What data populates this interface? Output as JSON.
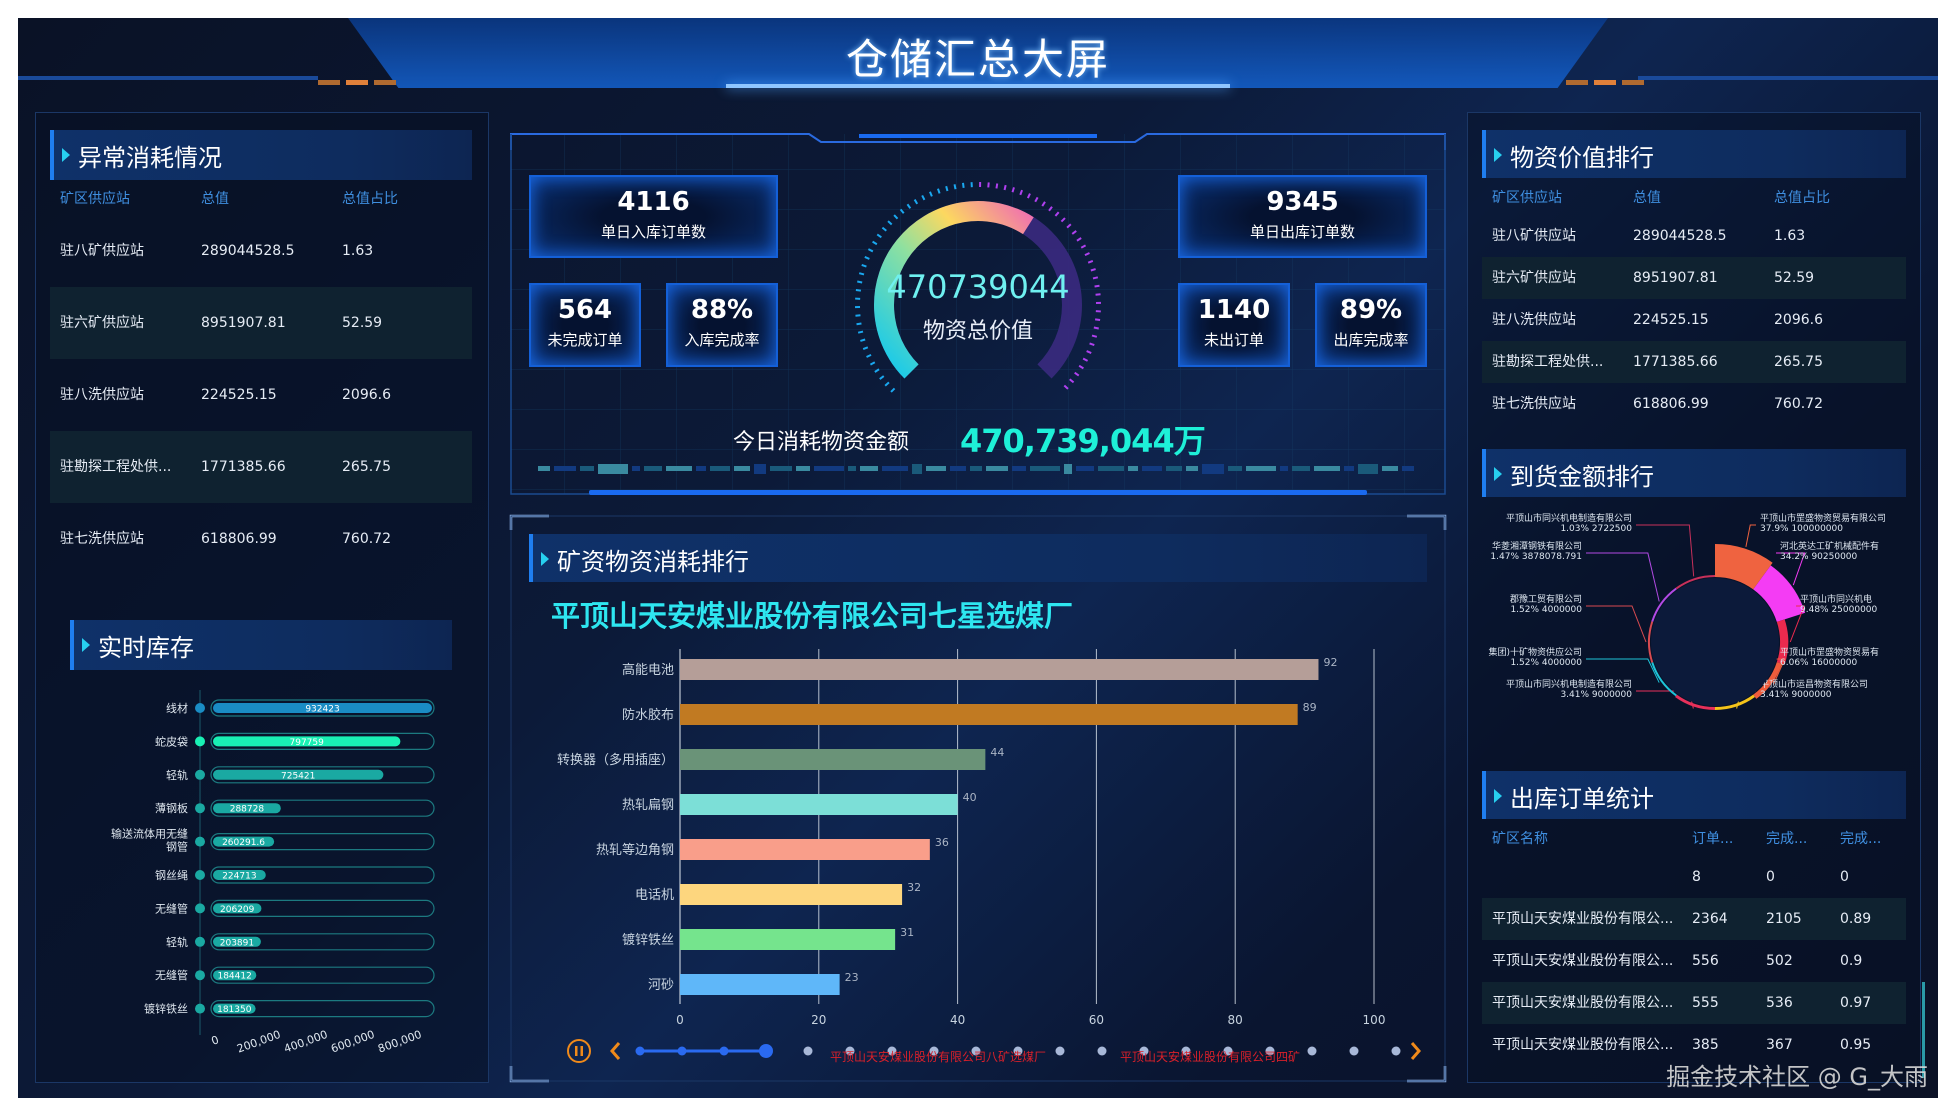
{
  "header": {
    "title": "仓储汇总大屏"
  },
  "abnormal": {
    "title": "异常消耗情况",
    "columns": [
      "矿区供应站",
      "总值",
      "总值占比"
    ],
    "rows": [
      [
        "驻八矿供应站",
        "289044528.5",
        "1.63"
      ],
      [
        "驻六矿供应站",
        "8951907.81",
        "52.59"
      ],
      [
        "驻八洗供应站",
        "224525.15",
        "2096.6"
      ],
      [
        "驻勘探工程处供...",
        "1771385.66",
        "265.75"
      ],
      [
        "驻七洗供应站",
        "618806.99",
        "760.72"
      ]
    ]
  },
  "inventory": {
    "title": "实时库存",
    "chart_data": {
      "type": "bar",
      "orientation": "horizontal",
      "categories": [
        "线材",
        "蛇皮袋",
        "轻轨",
        "薄钢板",
        "输送流体用无缝钢管",
        "钢丝绳",
        "无缝管",
        "轻轨",
        "无缝管",
        "镀锌铁丝"
      ],
      "values": [
        932423,
        797759,
        725421,
        288728,
        260291.6,
        224713,
        206209,
        203891,
        184412,
        181350
      ],
      "value_labels": [
        "932423",
        "797759",
        "725421",
        "288728",
        "260291.6",
        "224713",
        "206209",
        "203891",
        "184412",
        "181350"
      ],
      "xticks": [
        "0",
        "200,000",
        "400,000",
        "600,000",
        "800,000"
      ],
      "xlim": [
        0,
        932423
      ],
      "colors": {
        "first": "#1a8cc4",
        "second": "#19f0b4",
        "rest": "#1aa9a2"
      }
    }
  },
  "kpi": {
    "inbound_orders": {
      "value": "4116",
      "label": "单日入库订单数"
    },
    "unfinished_orders": {
      "value": "564",
      "label": "未完成订单"
    },
    "inbound_rate": {
      "value": "88%",
      "label": "入库完成率"
    },
    "outbound_orders": {
      "value": "9345",
      "label": "单日出库订单数"
    },
    "unshipped_orders": {
      "value": "1140",
      "label": "未出订单"
    },
    "outbound_rate": {
      "value": "89%",
      "label": "出库完成率"
    },
    "gauge": {
      "value": "470739044",
      "label": "物资总价值",
      "fill": 0.62
    },
    "today_label": "今日消耗物资金额",
    "today_value": "470,739,044万"
  },
  "consumption": {
    "title": "矿资物资消耗排行",
    "chart_data": {
      "type": "bar",
      "orientation": "horizontal",
      "title": "平顶山天安煤业股份有限公司七星选煤厂",
      "categories": [
        "高能电池",
        "防水胶布",
        "转换器（多用插座）",
        "热轧扁钢",
        "热轧等边角钢",
        "电话机",
        "镀锌铁丝",
        "河砂"
      ],
      "values": [
        92,
        89,
        44,
        40,
        36,
        32,
        31,
        23
      ],
      "colors": [
        "#b59e98",
        "#c17a22",
        "#6a9378",
        "#7cdfd7",
        "#f99e8a",
        "#fdd67e",
        "#75e48d",
        "#5fb7f9"
      ],
      "xlim": [
        0,
        100
      ],
      "xticks": [
        "0",
        "20",
        "40",
        "60",
        "80",
        "100"
      ],
      "grid": true
    },
    "timeline": {
      "count": 19,
      "current": 4,
      "labels": [
        "平顶山天安煤业股份有限公司八矿选煤厂",
        "平顶山天安煤业股份有限公司四矿"
      ]
    }
  },
  "value_rank": {
    "title": "物资价值排行",
    "columns": [
      "矿区供应站",
      "总值",
      "总值占比"
    ],
    "rows": [
      [
        "驻八矿供应站",
        "289044528.5",
        "1.63"
      ],
      [
        "驻六矿供应站",
        "8951907.81",
        "52.59"
      ],
      [
        "驻八洗供应站",
        "224525.15",
        "2096.6"
      ],
      [
        "驻勘探工程处供...",
        "1771385.66",
        "265.75"
      ],
      [
        "驻七洗供应站",
        "618806.99",
        "760.72"
      ]
    ]
  },
  "arrival_rank": {
    "title": "到货金额排行",
    "chart_data": {
      "type": "pie",
      "rose": true,
      "slices": [
        {
          "name": "平顶山市罡盛物资贸易有限公司",
          "pct": "37.9%",
          "value": "100000000",
          "color": "#ef6340"
        },
        {
          "name": "河北英达工矿机械配件有",
          "pct": "34.2%",
          "value": "90250000",
          "color": "#f43cf4"
        },
        {
          "name": "平顶山市同兴机电",
          "pct": "9.48%",
          "value": "25000000",
          "color": "#ea2a4e"
        },
        {
          "name": "平顶山市罡盛物资贸易有",
          "pct": "6.06%",
          "value": "16000000",
          "color": "#ee5c3c"
        },
        {
          "name": "平顶山市运昌物资有限公司",
          "pct": "3.41%",
          "value": "9000000",
          "color": "#f5c41a"
        },
        {
          "name": "平顶山市同兴机电制造有限公司",
          "pct": "3.41%",
          "value": "9000000",
          "color": "#e8305a"
        },
        {
          "name": "集团)十矿物资供应公司",
          "pct": "1.52%",
          "value": "4000000",
          "color": "#1ec4d8"
        },
        {
          "name": "郡豫工贸有限公司",
          "pct": "1.52%",
          "value": "4000000",
          "color": "#d84a50"
        },
        {
          "name": "华菱湘潭钢铁有限公司",
          "pct": "1.47%",
          "value": "3878078.791",
          "color": "#b24ae4"
        },
        {
          "name": "平顶山市同兴机电制造有限公司",
          "pct": "1.03%",
          "value": "2722500",
          "color": "#c8305a"
        }
      ]
    }
  },
  "outbound_stats": {
    "title": "出库订单统计",
    "columns": [
      "矿区名称",
      "订单...",
      "完成...",
      "完成..."
    ],
    "rows": [
      [
        "",
        "8",
        "0",
        "0"
      ],
      [
        "平顶山天安煤业股份有限公...",
        "2364",
        "2105",
        "0.89"
      ],
      [
        "平顶山天安煤业股份有限公...",
        "556",
        "502",
        "0.9"
      ],
      [
        "平顶山天安煤业股份有限公...",
        "555",
        "536",
        "0.97"
      ],
      [
        "平顶山天安煤业股份有限公...",
        "385",
        "367",
        "0.95"
      ]
    ]
  },
  "watermark": "掘金技术社区 @ G_大雨"
}
